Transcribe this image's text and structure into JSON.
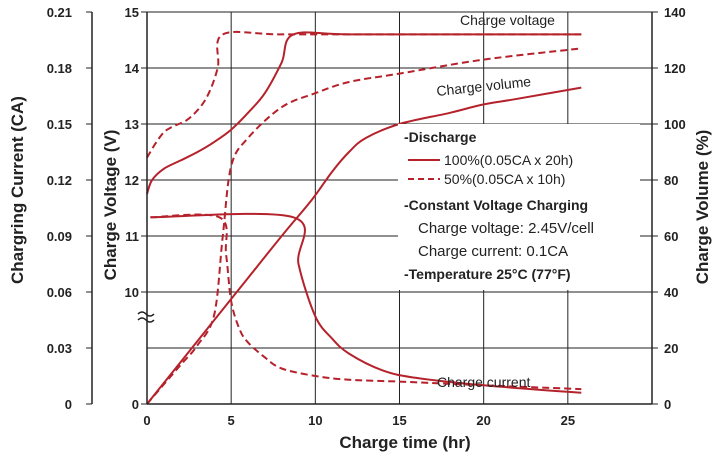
{
  "chart_data": {
    "type": "line",
    "xlabel": "Charge time (hr)",
    "ylabel_left_outer": "Chargring Current (CA)",
    "ylabel_left_inner": "Charge Voltage (V)",
    "ylabel_right": "Charge Volume (%)",
    "x_ticks": [
      "0",
      "5",
      "10",
      "15",
      "20",
      "25"
    ],
    "x_range": [
      0,
      30
    ],
    "current_axis": {
      "ticks": [
        "0",
        "0.03",
        "0.06",
        "0.09",
        "0.12",
        "0.15",
        "0.18",
        "0.21"
      ],
      "range": [
        0,
        0.21
      ]
    },
    "voltage_axis": {
      "ticks": [
        "0",
        "10",
        "11",
        "12",
        "13",
        "14",
        "15"
      ],
      "range_shown": [
        9,
        15
      ],
      "broken_below": 9.5
    },
    "volume_axis": {
      "ticks": [
        "0",
        "20",
        "40",
        "60",
        "80",
        "100",
        "120",
        "140"
      ],
      "range": [
        0,
        140
      ]
    },
    "grid": true,
    "colors": {
      "curve": "#b5222b",
      "axis": "#222222"
    },
    "curve_labels": {
      "voltage": "Charge voltage",
      "volume": "Charge volume",
      "current": "Charge current"
    },
    "series": [
      {
        "name": "Charge voltage",
        "legend": "100%(0.05CA x 20h)",
        "style": "solid",
        "axis": "voltage",
        "points": [
          [
            0,
            11.75
          ],
          [
            0.3,
            12.0
          ],
          [
            1,
            12.2
          ],
          [
            2,
            12.35
          ],
          [
            3,
            12.5
          ],
          [
            4,
            12.68
          ],
          [
            5,
            12.9
          ],
          [
            6,
            13.2
          ],
          [
            7,
            13.55
          ],
          [
            8,
            14.1
          ],
          [
            8.7,
            14.6
          ],
          [
            12,
            14.6
          ],
          [
            20,
            14.6
          ],
          [
            25.8,
            14.6
          ]
        ]
      },
      {
        "name": "Charge voltage",
        "legend": "50%(0.05CA x 10h)",
        "style": "dashed",
        "axis": "voltage",
        "points": [
          [
            0,
            12.4
          ],
          [
            0.5,
            12.65
          ],
          [
            1,
            12.85
          ],
          [
            1.5,
            12.95
          ],
          [
            2.5,
            13.1
          ],
          [
            3.5,
            13.45
          ],
          [
            4.2,
            14.0
          ],
          [
            4.5,
            14.6
          ],
          [
            8,
            14.6
          ],
          [
            15,
            14.6
          ],
          [
            25.8,
            14.6
          ]
        ]
      },
      {
        "name": "Charge volume",
        "legend": "100%(0.05CA x 20h)",
        "style": "solid",
        "axis": "volume",
        "points": [
          [
            0,
            0
          ],
          [
            2,
            15
          ],
          [
            4,
            30
          ],
          [
            6,
            45
          ],
          [
            8,
            60
          ],
          [
            9.8,
            73
          ],
          [
            11,
            83
          ],
          [
            12,
            90
          ],
          [
            13,
            95
          ],
          [
            15,
            100
          ],
          [
            18,
            104
          ],
          [
            20,
            107
          ],
          [
            22,
            109
          ],
          [
            25.8,
            113
          ]
        ]
      },
      {
        "name": "Charge volume",
        "legend": "50%(0.05CA x 10h)",
        "style": "dashed",
        "axis": "volume",
        "points": [
          [
            0,
            0
          ],
          [
            1,
            7
          ],
          [
            2,
            14
          ],
          [
            3,
            21
          ],
          [
            4,
            32
          ],
          [
            4.5,
            60
          ],
          [
            5,
            85
          ],
          [
            6,
            95
          ],
          [
            8,
            106
          ],
          [
            10,
            111
          ],
          [
            12,
            115
          ],
          [
            15,
            118
          ],
          [
            20,
            123
          ],
          [
            25.8,
            127
          ]
        ]
      },
      {
        "name": "Charge current",
        "legend": "100%(0.05CA x 20h)",
        "style": "solid",
        "axis": "current",
        "points": [
          [
            0.2,
            0.1
          ],
          [
            8.7,
            0.1
          ],
          [
            9,
            0.075
          ],
          [
            10,
            0.047
          ],
          [
            11,
            0.035
          ],
          [
            12,
            0.027
          ],
          [
            14,
            0.018
          ],
          [
            16,
            0.014
          ],
          [
            20,
            0.01
          ],
          [
            25.8,
            0.006
          ]
        ]
      },
      {
        "name": "Charge current",
        "legend": "50%(0.05CA x 10h)",
        "style": "dashed",
        "axis": "current",
        "points": [
          [
            0.2,
            0.1
          ],
          [
            4.3,
            0.1
          ],
          [
            4.7,
            0.08
          ],
          [
            5,
            0.055
          ],
          [
            5.5,
            0.04
          ],
          [
            6,
            0.033
          ],
          [
            7,
            0.025
          ],
          [
            8,
            0.019
          ],
          [
            10,
            0.015
          ],
          [
            12,
            0.013
          ],
          [
            15,
            0.012
          ],
          [
            20,
            0.01
          ],
          [
            25.8,
            0.008
          ]
        ]
      }
    ],
    "legend": {
      "discharge_title": "-Discharge",
      "item_solid": "100%(0.05CA x 20h)",
      "item_dashed": "50%(0.05CA x 10h)",
      "cv_title": "-Constant Voltage Charging",
      "cv_voltage": "Charge voltage: 2.45V/cell",
      "cv_current": "Charge current: 0.1CA",
      "temperature": "-Temperature 25°C (77°F)",
      "placement": "center-right"
    }
  }
}
